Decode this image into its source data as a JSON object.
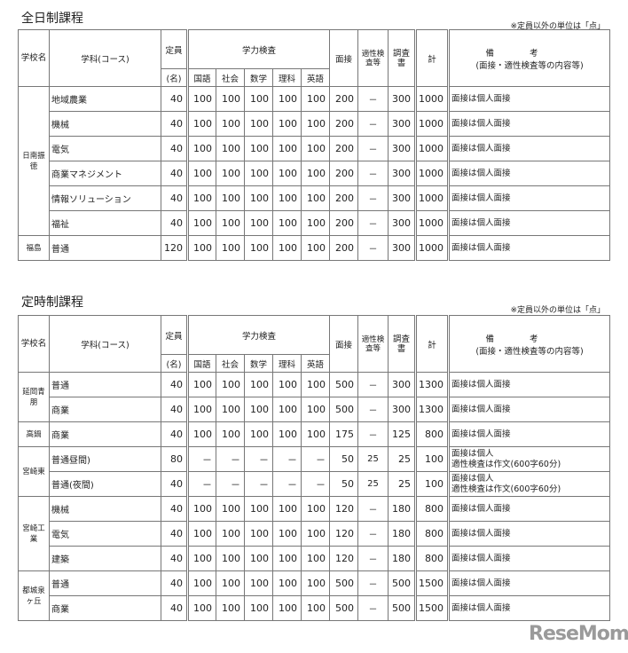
{
  "unit_note": "※定員以外の単位は「点」",
  "headers": {
    "school": "学校名",
    "course": "学科(コース)",
    "capacity": "定員",
    "capacity_unit": "(名)",
    "test": "学力検査",
    "subjects": [
      "国語",
      "社会",
      "数学",
      "理科",
      "英語"
    ],
    "interview": "面接",
    "aptitude": "適性検査等",
    "report": "調査書",
    "total": "計",
    "notes": "備考",
    "notes_sub": "(面接・適性検査等の内容等)"
  },
  "sections": [
    {
      "title": "全日制課程",
      "schools": [
        {
          "name": "日南振徳",
          "rows": [
            {
              "course": "地域農業",
              "capacity": "40",
              "scores": [
                "100",
                "100",
                "100",
                "100",
                "100"
              ],
              "interview": "200",
              "aptitude": "－",
              "report": "300",
              "total": "1000",
              "note": "面接は個人面接"
            },
            {
              "course": "機械",
              "capacity": "40",
              "scores": [
                "100",
                "100",
                "100",
                "100",
                "100"
              ],
              "interview": "200",
              "aptitude": "－",
              "report": "300",
              "total": "1000",
              "note": "面接は個人面接"
            },
            {
              "course": "電気",
              "capacity": "40",
              "scores": [
                "100",
                "100",
                "100",
                "100",
                "100"
              ],
              "interview": "200",
              "aptitude": "－",
              "report": "300",
              "total": "1000",
              "note": "面接は個人面接"
            },
            {
              "course": "商業マネジメント",
              "capacity": "40",
              "scores": [
                "100",
                "100",
                "100",
                "100",
                "100"
              ],
              "interview": "200",
              "aptitude": "－",
              "report": "300",
              "total": "1000",
              "note": "面接は個人面接"
            },
            {
              "course": "情報ソリューション",
              "capacity": "40",
              "scores": [
                "100",
                "100",
                "100",
                "100",
                "100"
              ],
              "interview": "200",
              "aptitude": "－",
              "report": "300",
              "total": "1000",
              "note": "面接は個人面接"
            },
            {
              "course": "福祉",
              "capacity": "40",
              "scores": [
                "100",
                "100",
                "100",
                "100",
                "100"
              ],
              "interview": "200",
              "aptitude": "－",
              "report": "300",
              "total": "1000",
              "note": "面接は個人面接"
            }
          ]
        },
        {
          "name": "福島",
          "rows": [
            {
              "course": "普通",
              "capacity": "120",
              "scores": [
                "100",
                "100",
                "100",
                "100",
                "100"
              ],
              "interview": "200",
              "aptitude": "－",
              "report": "300",
              "total": "1000",
              "note": "面接は個人面接"
            }
          ]
        }
      ]
    },
    {
      "title": "定時制課程",
      "schools": [
        {
          "name": "延岡青朋",
          "rows": [
            {
              "course": "普通",
              "capacity": "40",
              "scores": [
                "100",
                "100",
                "100",
                "100",
                "100"
              ],
              "interview": "500",
              "aptitude": "－",
              "report": "300",
              "total": "1300",
              "note": "面接は個人面接"
            },
            {
              "course": "商業",
              "capacity": "40",
              "scores": [
                "100",
                "100",
                "100",
                "100",
                "100"
              ],
              "interview": "500",
              "aptitude": "－",
              "report": "300",
              "total": "1300",
              "note": "面接は個人面接"
            }
          ]
        },
        {
          "name": "高鍋",
          "rows": [
            {
              "course": "商業",
              "capacity": "40",
              "scores": [
                "100",
                "100",
                "100",
                "100",
                "100"
              ],
              "interview": "175",
              "aptitude": "－",
              "report": "125",
              "total": "800",
              "note": "面接は個人面接"
            }
          ]
        },
        {
          "name": "宮崎東",
          "rows": [
            {
              "course": "普通昼間)",
              "capacity": "80",
              "scores": [
                "－",
                "－",
                "－",
                "－",
                "－"
              ],
              "interview": "50",
              "aptitude": "25",
              "report": "25",
              "total": "100",
              "note": "面接は個人\n適性検査は作文(600字60分)"
            },
            {
              "course": "普通(夜間)",
              "capacity": "40",
              "scores": [
                "－",
                "－",
                "－",
                "－",
                "－"
              ],
              "interview": "50",
              "aptitude": "25",
              "report": "25",
              "total": "100",
              "note": "面接は個人\n適性検査は作文(600字60分)"
            }
          ]
        },
        {
          "name": "宮崎工業",
          "rows": [
            {
              "course": "機械",
              "capacity": "40",
              "scores": [
                "100",
                "100",
                "100",
                "100",
                "100"
              ],
              "interview": "120",
              "aptitude": "－",
              "report": "180",
              "total": "800",
              "note": "面接は個人面接"
            },
            {
              "course": "電気",
              "capacity": "40",
              "scores": [
                "100",
                "100",
                "100",
                "100",
                "100"
              ],
              "interview": "120",
              "aptitude": "－",
              "report": "180",
              "total": "800",
              "note": "面接は個人面接"
            },
            {
              "course": "建築",
              "capacity": "40",
              "scores": [
                "100",
                "100",
                "100",
                "100",
                "100"
              ],
              "interview": "120",
              "aptitude": "－",
              "report": "180",
              "total": "800",
              "note": "面接は個人面接"
            }
          ]
        },
        {
          "name": "都城泉ヶ丘",
          "rows": [
            {
              "course": "普通",
              "capacity": "40",
              "scores": [
                "100",
                "100",
                "100",
                "100",
                "100"
              ],
              "interview": "500",
              "aptitude": "－",
              "report": "500",
              "total": "1500",
              "note": "面接は個人面接"
            },
            {
              "course": "商業",
              "capacity": "40",
              "scores": [
                "100",
                "100",
                "100",
                "100",
                "100"
              ],
              "interview": "500",
              "aptitude": "－",
              "report": "500",
              "total": "1500",
              "note": "面接は個人面接"
            }
          ]
        }
      ]
    }
  ],
  "logo": "ReseMom"
}
